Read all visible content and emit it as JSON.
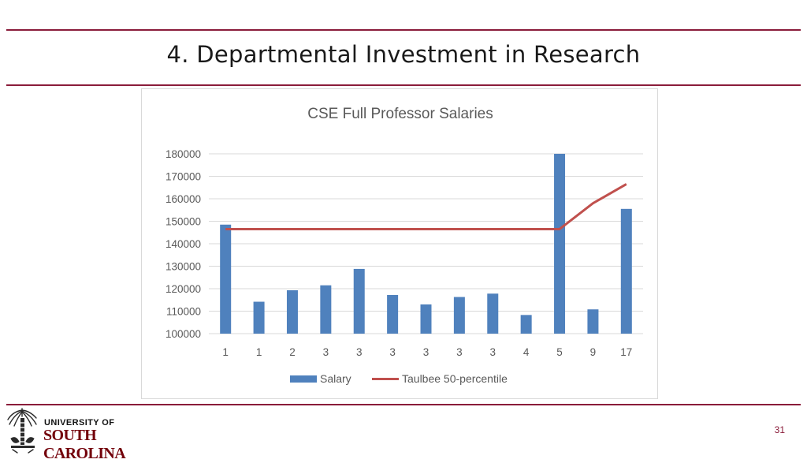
{
  "slide": {
    "title": "4.  Departmental Investment in Research",
    "page_number": "31"
  },
  "logo": {
    "line1": "UNIVERSITY OF",
    "line2": "SOUTH CAROLINA"
  },
  "colors": {
    "rule": "#8a1c3a",
    "bar": "#4f81bd",
    "line": "#c0504d",
    "logo_text": "#73000a"
  },
  "chart_data": {
    "type": "bar",
    "title": "CSE Full Professor Salaries",
    "xlabel": "",
    "ylabel": "",
    "categories": [
      "1",
      "1",
      "2",
      "3",
      "3",
      "3",
      "3",
      "3",
      "3",
      "4",
      "5",
      "9",
      "17"
    ],
    "ylim": [
      100000,
      180000
    ],
    "yticks": [
      100000,
      110000,
      120000,
      130000,
      140000,
      150000,
      160000,
      170000,
      180000
    ],
    "grid": true,
    "legend": "bottom",
    "series": [
      {
        "name": "Salary",
        "type": "bar",
        "color": "#4f81bd",
        "values": [
          148500,
          114200,
          119300,
          121500,
          128800,
          117200,
          113000,
          116300,
          117800,
          108300,
          180000,
          110800,
          155500
        ]
      },
      {
        "name": "Taulbee 50-percentile",
        "type": "line",
        "color": "#c0504d",
        "values": [
          146500,
          146500,
          146500,
          146500,
          146500,
          146500,
          146500,
          146500,
          146500,
          146500,
          146500,
          158000,
          166500
        ]
      }
    ]
  }
}
